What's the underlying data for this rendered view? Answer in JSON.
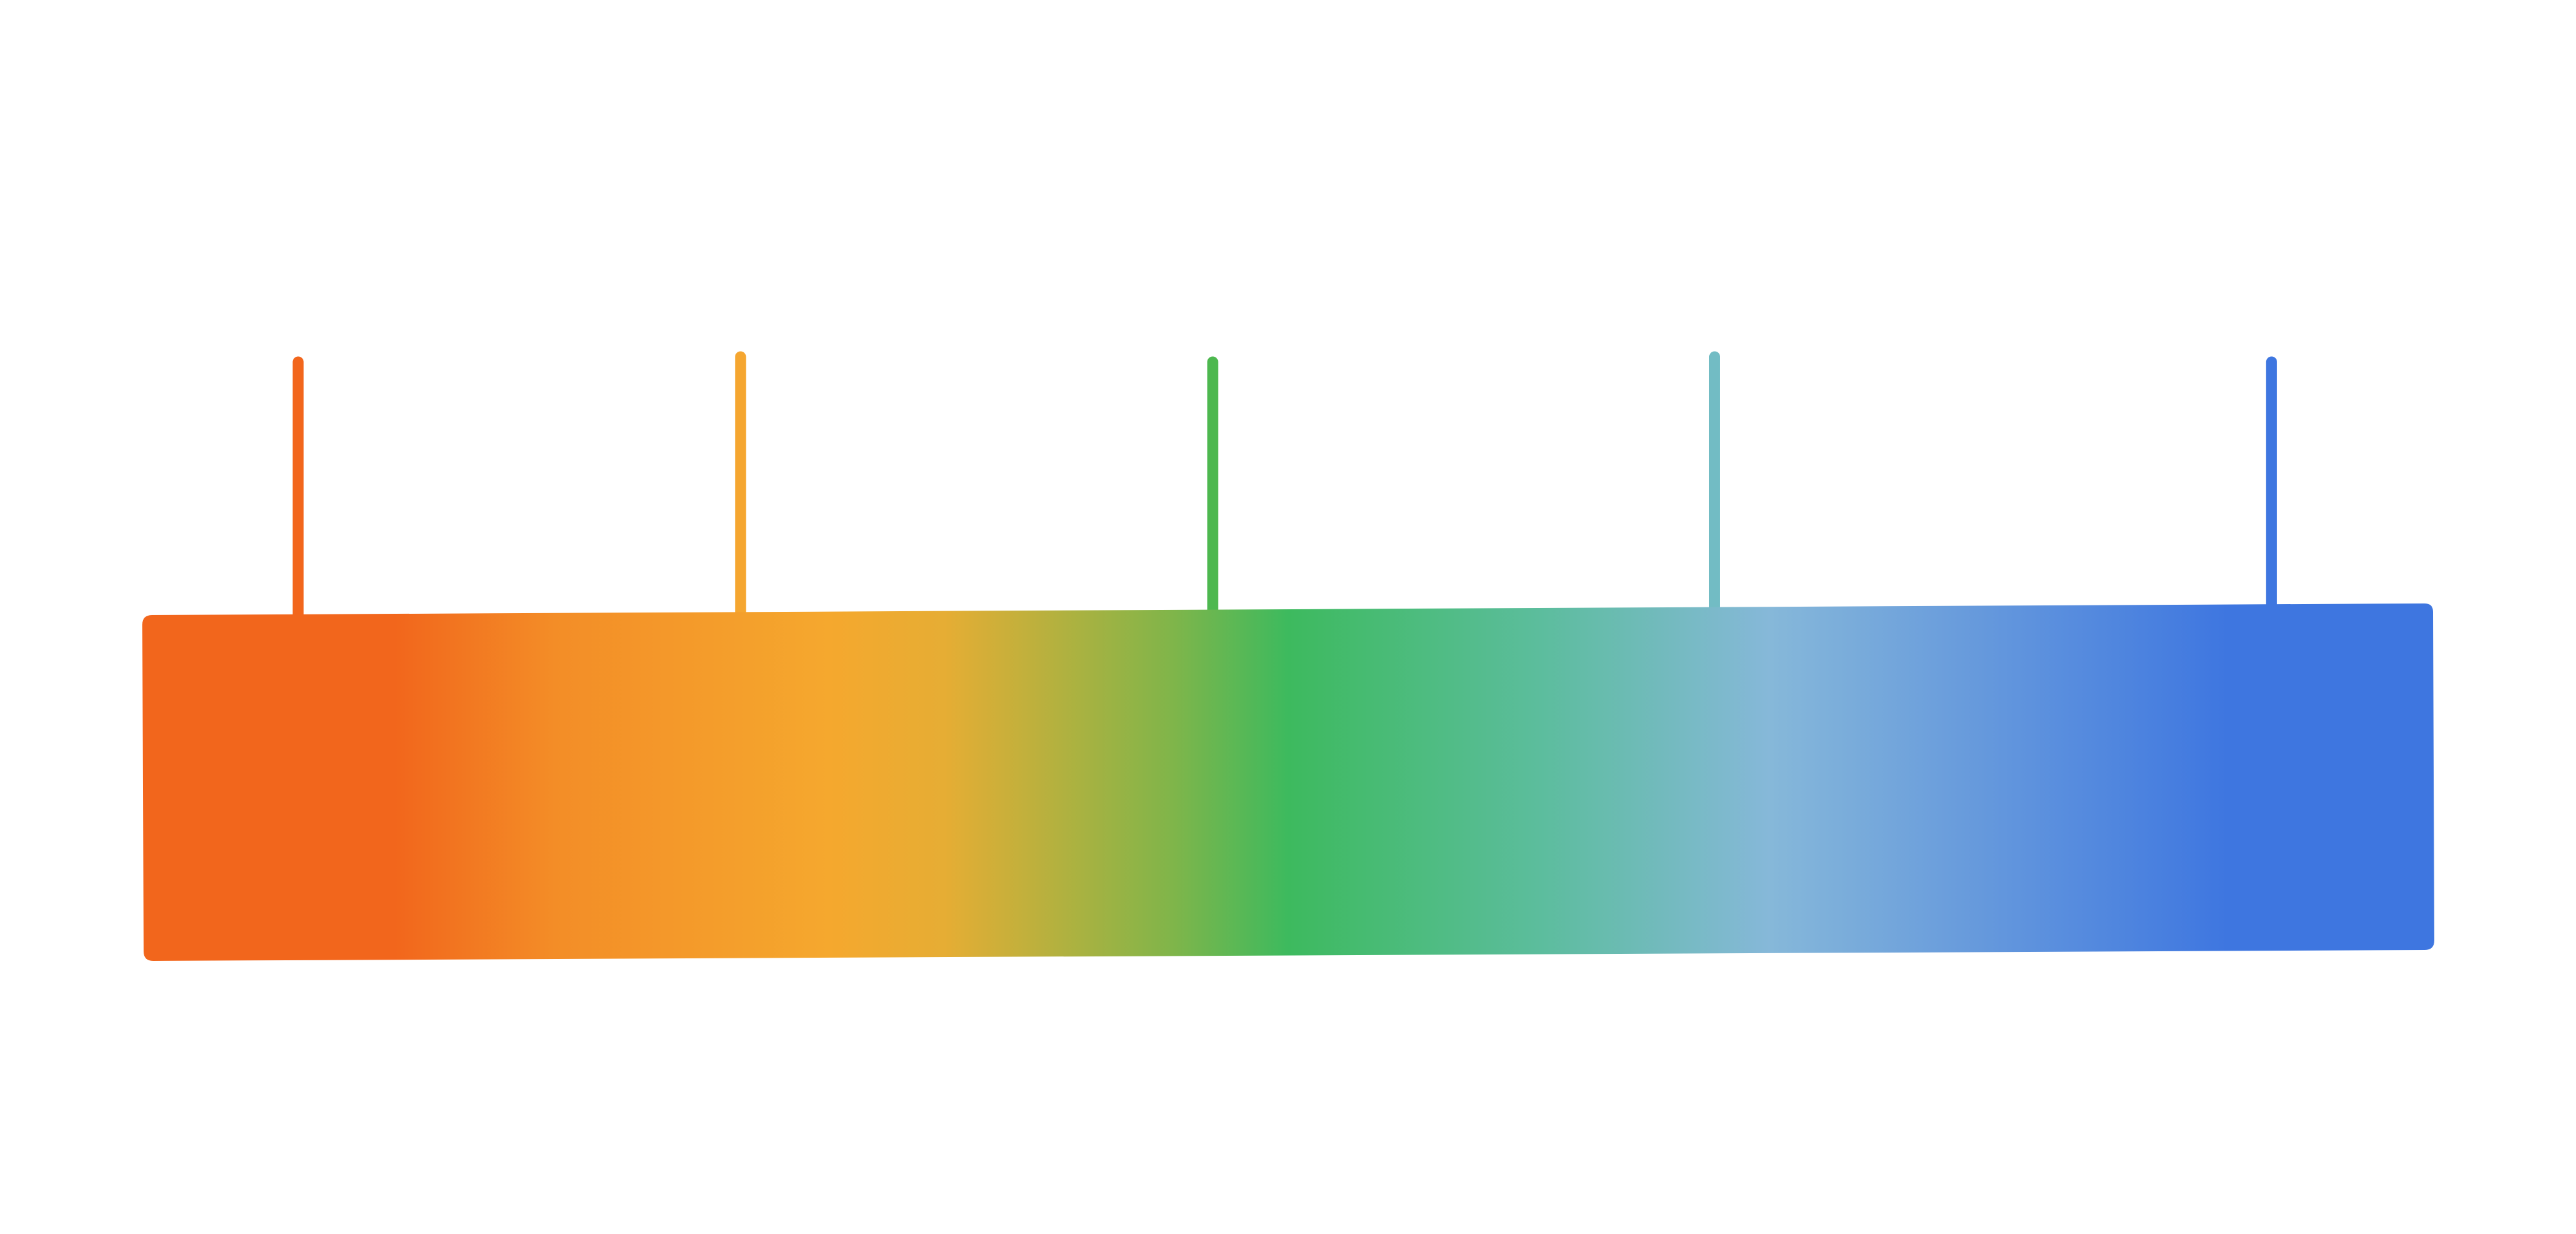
{
  "gradient_bar": {
    "stops": [
      {
        "offset": 0.0,
        "color": "#f2661c"
      },
      {
        "offset": 0.11,
        "color": "#f2661c"
      },
      {
        "offset": 0.18,
        "color": "#f38d27"
      },
      {
        "offset": 0.3,
        "color": "#f5a82e"
      },
      {
        "offset": 0.35,
        "color": "#e6ad34"
      },
      {
        "offset": 0.45,
        "color": "#7fb54a"
      },
      {
        "offset": 0.5,
        "color": "#3dba5e"
      },
      {
        "offset": 0.61,
        "color": "#5cbd9d"
      },
      {
        "offset": 0.71,
        "color": "#86b8d9"
      },
      {
        "offset": 0.79,
        "color": "#6a9ddc"
      },
      {
        "offset": 0.91,
        "color": "#3e76e0"
      },
      {
        "offset": 1.0,
        "color": "#3e76e0"
      }
    ]
  },
  "markers": [
    {
      "id": "marker-1",
      "position": 0.068,
      "color": "#f2661c"
    },
    {
      "id": "marker-2",
      "position": 0.261,
      "color": "#f5a630"
    },
    {
      "id": "marker-3",
      "position": 0.467,
      "color": "#4db84f"
    },
    {
      "id": "marker-4",
      "position": 0.686,
      "color": "#72bcc4"
    },
    {
      "id": "marker-5",
      "position": 0.929,
      "color": "#3e76e0"
    }
  ]
}
